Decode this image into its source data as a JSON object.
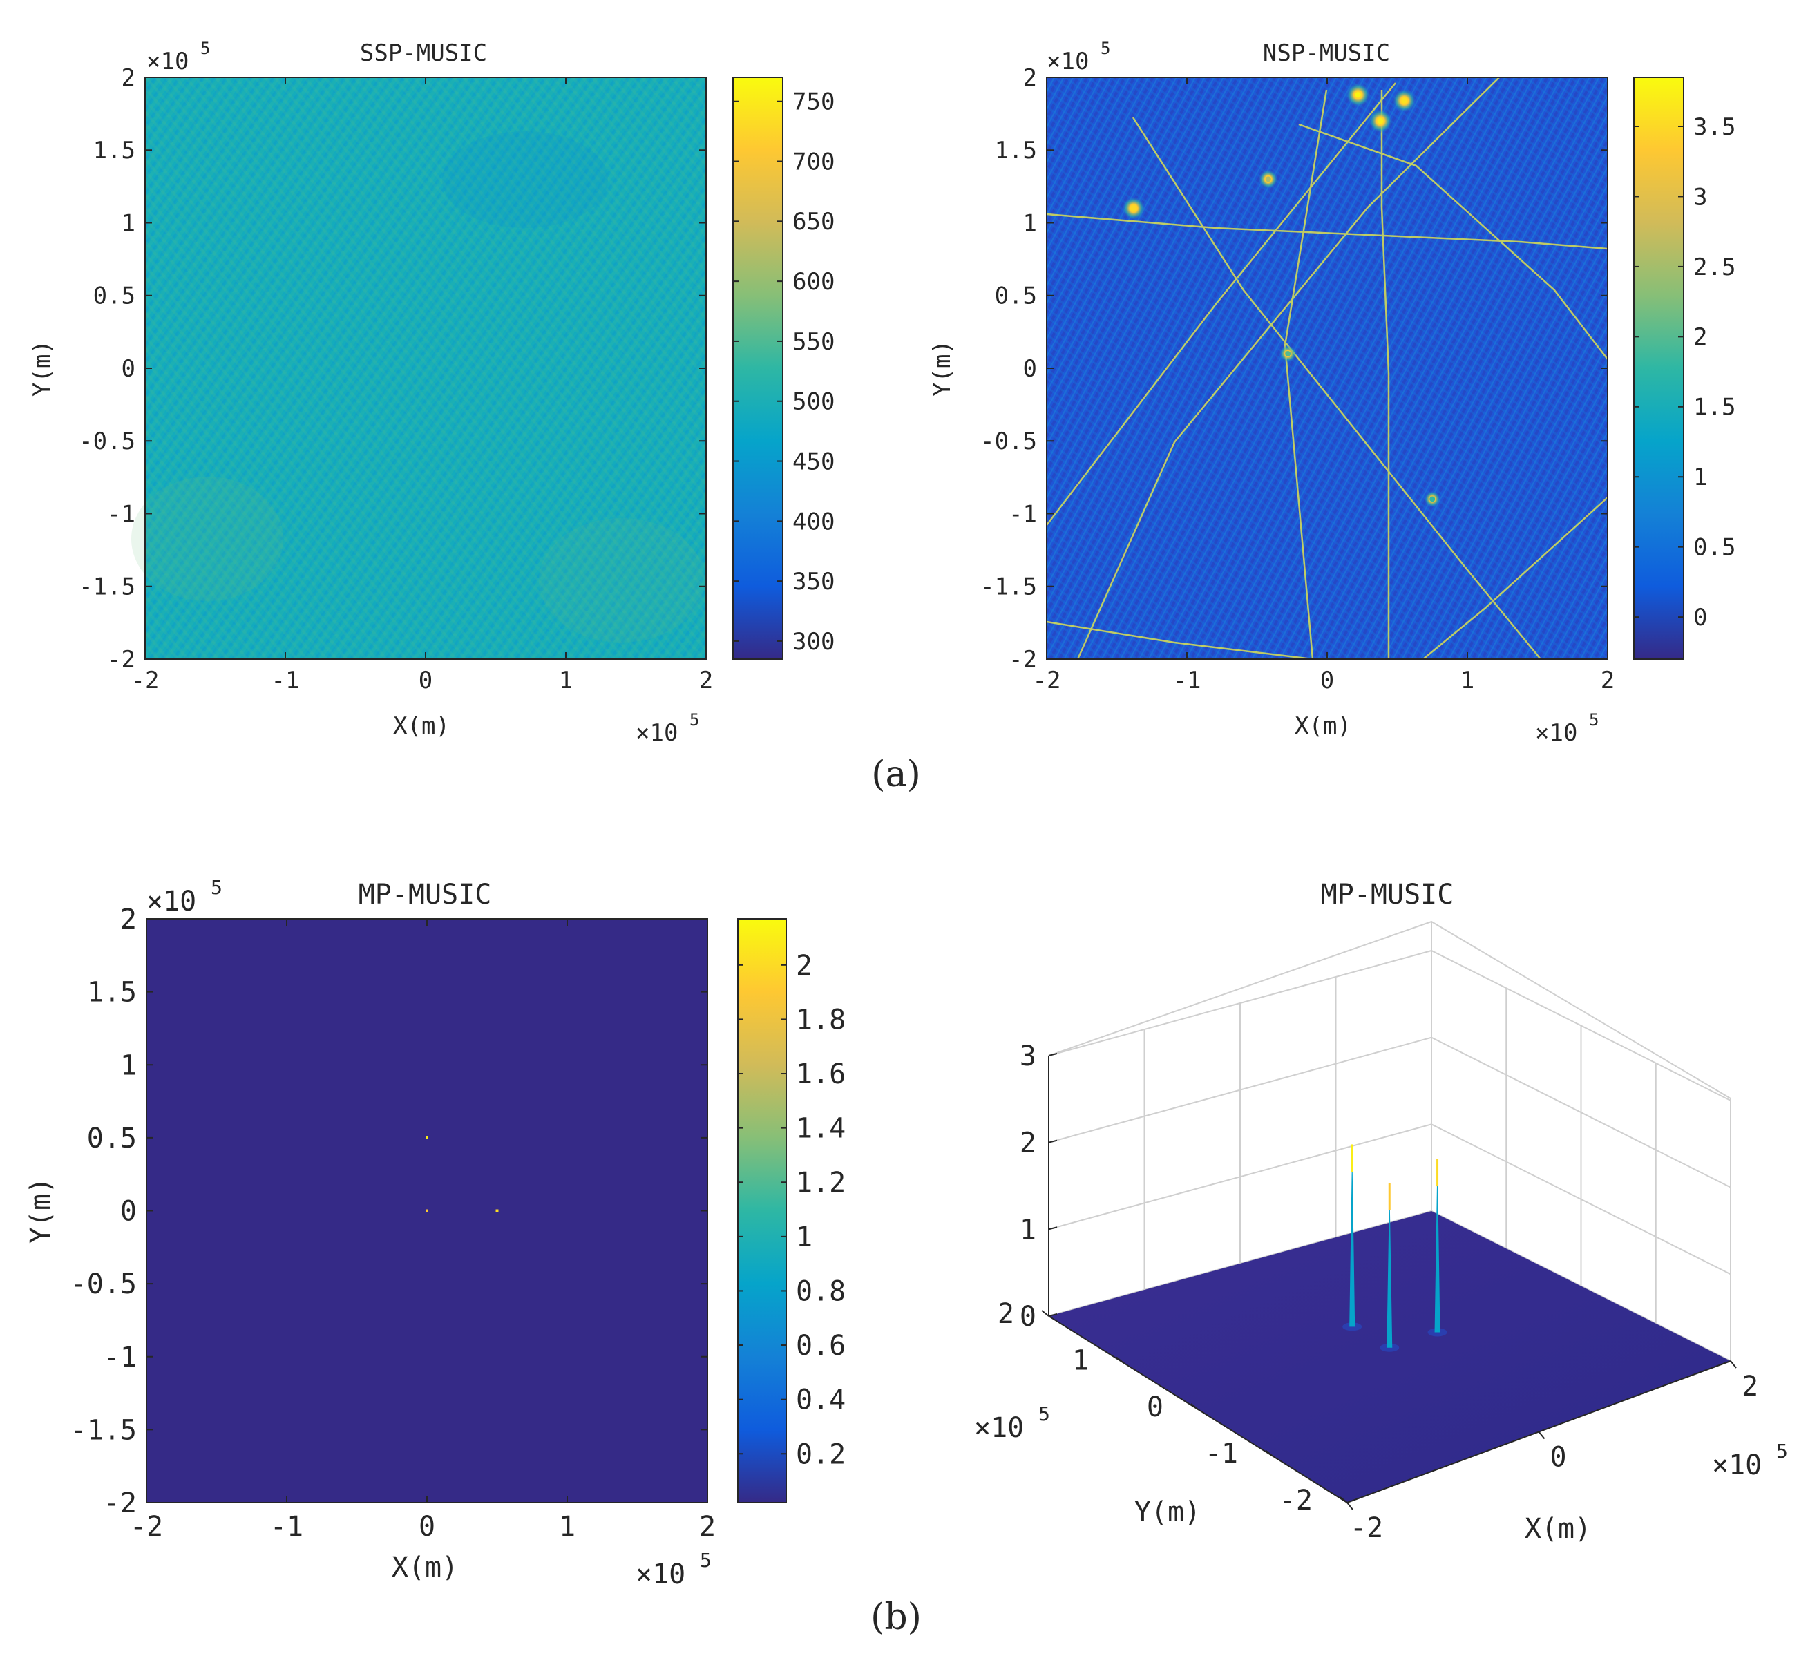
{
  "figure": {
    "panel_a_caption": "(a)",
    "panel_b_caption": "(b)"
  },
  "colormap": [
    "#352a87",
    "#0f5cdd",
    "#1481d6",
    "#06a4ca",
    "#2eb7a4",
    "#87bf77",
    "#d1bb59",
    "#fec832",
    "#f9fb0e"
  ],
  "chart_data": [
    {
      "type": "heatmap",
      "title": "SSP-MUSIC",
      "xlabel": "X(m)",
      "ylabel": "Y(m)",
      "x_exponent": "×10",
      "y_exponent": "×10",
      "exponent_power": "5",
      "xlim": [
        -2,
        2
      ],
      "ylim": [
        -2,
        2
      ],
      "xticks": [
        "-2",
        "-1",
        "0",
        "1",
        "2"
      ],
      "yticks": [
        "2",
        "1.5",
        "1",
        "0.5",
        "0",
        "-0.5",
        "-1",
        "-1.5",
        "-2"
      ],
      "colorbar_range": [
        285,
        770
      ],
      "colorbar_ticks": [
        "750",
        "700",
        "650",
        "600",
        "550",
        "500",
        "450",
        "400",
        "350",
        "300"
      ],
      "background_level": 500,
      "note": "nearly uniform field (~500) with faint interference fringes"
    },
    {
      "type": "heatmap",
      "title": "NSP-MUSIC",
      "xlabel": "X(m)",
      "ylabel": "Y(m)",
      "x_exponent": "×10",
      "y_exponent": "×10",
      "exponent_power": "5",
      "xlim": [
        -2,
        2
      ],
      "ylim": [
        -2,
        2
      ],
      "xticks": [
        "-2",
        "-1",
        "0",
        "1",
        "2"
      ],
      "yticks": [
        "2",
        "1.5",
        "1",
        "0.5",
        "0",
        "-0.5",
        "-1",
        "-1.5",
        "-2"
      ],
      "colorbar_range": [
        -0.3,
        3.85
      ],
      "colorbar_ticks": [
        "3.5",
        "3",
        "2.5",
        "2",
        "1.5",
        "1",
        "0.5",
        "0"
      ],
      "background_level": 0.3,
      "hotspots": [
        {
          "x": 0.22,
          "y": 1.88,
          "value": 3.8
        },
        {
          "x": 0.38,
          "y": 1.7,
          "value": 3.7
        },
        {
          "x": 0.55,
          "y": 1.84,
          "value": 3.6
        },
        {
          "x": -1.38,
          "y": 1.1,
          "value": 3.5
        },
        {
          "x": -0.42,
          "y": 1.3,
          "value": 2.6
        },
        {
          "x": -0.28,
          "y": 0.1,
          "value": 2.0
        },
        {
          "x": 0.75,
          "y": -0.9,
          "value": 1.8
        }
      ]
    },
    {
      "type": "heatmap",
      "title": "MP-MUSIC",
      "xlabel": "X(m)",
      "ylabel": "Y(m)",
      "x_exponent": "×10",
      "y_exponent": "×10",
      "exponent_power": "5",
      "xlim": [
        -2,
        2
      ],
      "ylim": [
        -2,
        2
      ],
      "xticks": [
        "-2",
        "-1",
        "0",
        "1",
        "2"
      ],
      "yticks": [
        "2",
        "1.5",
        "1",
        "0.5",
        "0",
        "-0.5",
        "-1",
        "-1.5",
        "-2"
      ],
      "colorbar_range": [
        0.02,
        2.17
      ],
      "colorbar_ticks": [
        "2",
        "1.8",
        "1.6",
        "1.4",
        "1.2",
        "1",
        "0.8",
        "0.6",
        "0.4",
        "0.2"
      ],
      "background_level": 0.02,
      "peaks": [
        {
          "x": 0.0,
          "y": 0.5,
          "value": 2.1
        },
        {
          "x": 0.0,
          "y": 0.0,
          "value": 1.9
        },
        {
          "x": 0.5,
          "y": 0.0,
          "value": 2.0
        }
      ]
    },
    {
      "type": "surface",
      "title": "MP-MUSIC",
      "xlabel": "X(m)",
      "ylabel": "Y(m)",
      "x_exponent": "×10",
      "y_exponent": "×10",
      "exponent_power": "5",
      "xlim": [
        -2,
        2
      ],
      "ylim": [
        -2,
        2
      ],
      "zlim": [
        0,
        3
      ],
      "xticks": [
        "-2",
        "0",
        "2"
      ],
      "yticks": [
        "-2",
        "-1",
        "0",
        "1",
        "2"
      ],
      "zticks": [
        "0",
        "1",
        "2",
        "3"
      ],
      "baseline": 0.02,
      "peaks": [
        {
          "x": 0.0,
          "y": 0.5,
          "value": 2.1
        },
        {
          "x": 0.0,
          "y": 0.0,
          "value": 1.9
        },
        {
          "x": 0.5,
          "y": 0.0,
          "value": 2.0
        }
      ]
    }
  ]
}
